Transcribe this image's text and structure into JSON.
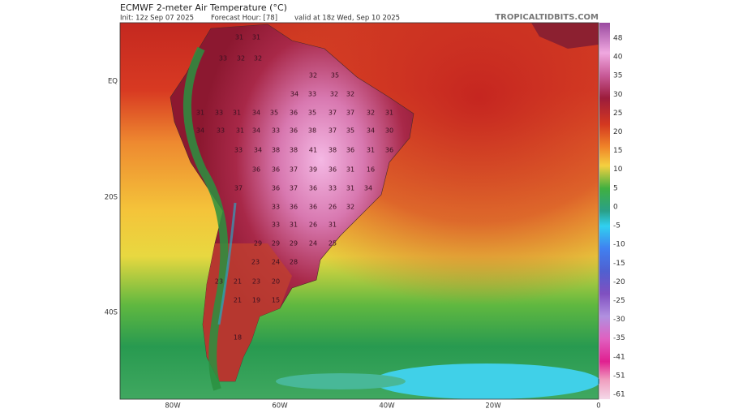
{
  "header": {
    "title": "ECMWF 2-meter Air Temperature (°C)",
    "init": "Init: 12z Sep 07 2025",
    "forecast_hour": "Forecast Hour: [78]",
    "valid": "valid at 18z Wed, Sep 10 2025",
    "site": "TROPICALTIDBITS.COM"
  },
  "axes": {
    "lat_labels": [
      "EQ",
      "20S",
      "40S"
    ],
    "lon_labels": [
      "80W",
      "60W",
      "40W",
      "20W",
      "0"
    ]
  },
  "colorbar": {
    "labels": [
      48,
      40,
      35,
      30,
      25,
      20,
      15,
      10,
      5,
      0,
      -5,
      -10,
      -15,
      -20,
      -25,
      -30,
      -35,
      -41,
      -51,
      -61
    ]
  },
  "map_labels": [
    31,
    31,
    33,
    32,
    32,
    32,
    35,
    34,
    33,
    32,
    32,
    31,
    33,
    31,
    34,
    35,
    36,
    35,
    37,
    37,
    32,
    31,
    34,
    33,
    31,
    34,
    33,
    36,
    38,
    37,
    35,
    34,
    30,
    33,
    34,
    38,
    38,
    41,
    38,
    36,
    31,
    36,
    36,
    36,
    37,
    39,
    36,
    31,
    16,
    37,
    36,
    37,
    36,
    33,
    31,
    34,
    33,
    36,
    36,
    26,
    32,
    33,
    31,
    26,
    31,
    29,
    29,
    29,
    24,
    25,
    23,
    24,
    28,
    23,
    21,
    23,
    20,
    21,
    19,
    15,
    18
  ]
}
